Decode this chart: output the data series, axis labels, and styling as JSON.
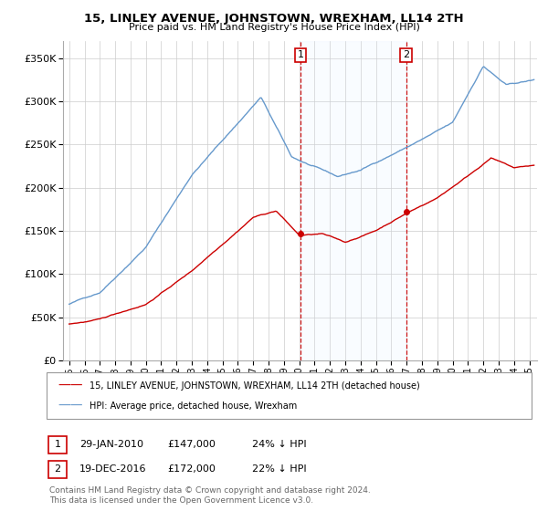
{
  "title": "15, LINLEY AVENUE, JOHNSTOWN, WREXHAM, LL14 2TH",
  "subtitle": "Price paid vs. HM Land Registry's House Price Index (HPI)",
  "legend_line1": "15, LINLEY AVENUE, JOHNSTOWN, WREXHAM, LL14 2TH (detached house)",
  "legend_line2": "HPI: Average price, detached house, Wrexham",
  "annotation1_label": "1",
  "annotation1_date": "29-JAN-2010",
  "annotation1_price": "£147,000",
  "annotation1_hpi": "24% ↓ HPI",
  "annotation1_year": 2010.08,
  "annotation1_value": 147000,
  "annotation2_label": "2",
  "annotation2_date": "19-DEC-2016",
  "annotation2_price": "£172,000",
  "annotation2_hpi": "22% ↓ HPI",
  "annotation2_year": 2016.96,
  "annotation2_value": 172000,
  "footer1": "Contains HM Land Registry data © Crown copyright and database right 2024.",
  "footer2": "This data is licensed under the Open Government Licence v3.0.",
  "hpi_color": "#6699cc",
  "price_color": "#cc0000",
  "vline_color": "#cc0000",
  "span_color": "#ddeeff",
  "background_color": "#ffffff",
  "ylim": [
    0,
    370000
  ],
  "xlim_start": 1994.6,
  "xlim_end": 2025.5
}
